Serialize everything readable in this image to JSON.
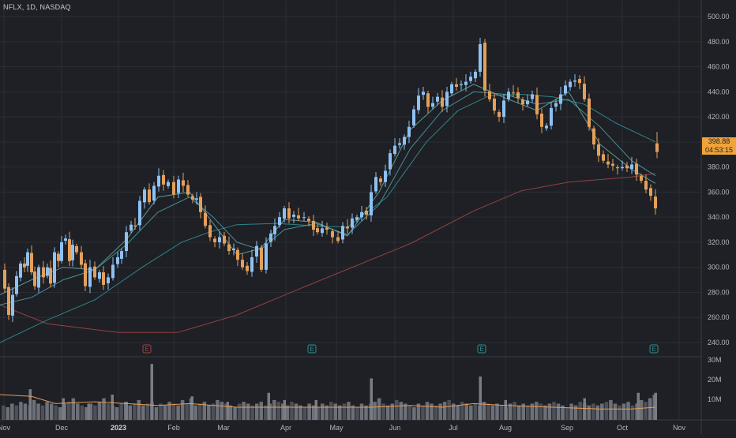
{
  "header": {
    "symbol": "NFLX, 1D, NASDAQ"
  },
  "price_tag": {
    "price": "398.88",
    "countdown": "04:53:15"
  },
  "colors": {
    "background": "#1e2025",
    "grid": "#2b2e35",
    "up": "#8ec1f2",
    "down": "#e3a05b",
    "ma_long": "#a04545",
    "ma_mid": "#2f8f93",
    "ma_short1": "#4b9aa6",
    "ma_short2": "#62a7a0",
    "volume": "#5b5e66",
    "volume_avg": "#e89b55",
    "price_tag": "#f0a33a"
  },
  "chart_data": [
    {
      "type": "candlestick",
      "title": "NFLX, 1D, NASDAQ",
      "ylim": [
        230,
        510
      ],
      "y_ticks": [
        "500.00",
        "480.00",
        "460.00",
        "440.00",
        "420.00",
        "400.00",
        "380.00",
        "360.00",
        "340.00",
        "320.00",
        "300.00",
        "280.00",
        "260.00",
        "240.00"
      ],
      "x_ticks": [
        "Nov",
        "Dec",
        "2023",
        "Feb",
        "Mar",
        "Apr",
        "May",
        "Jun",
        "Jul",
        "Aug",
        "Sep",
        "Oct",
        "Nov"
      ],
      "close_path": [
        [
          0,
          298
        ],
        [
          6,
          283
        ],
        [
          11,
          262
        ],
        [
          16,
          278
        ],
        [
          21,
          293
        ],
        [
          26,
          303
        ],
        [
          31,
          300
        ],
        [
          35,
          312
        ],
        [
          40,
          296
        ],
        [
          44,
          285
        ],
        [
          49,
          300
        ],
        [
          55,
          292
        ],
        [
          60,
          300
        ],
        [
          64,
          287
        ],
        [
          69,
          312
        ],
        [
          74,
          305
        ],
        [
          78,
          320
        ],
        [
          83,
          323
        ],
        [
          88,
          305
        ],
        [
          92,
          318
        ],
        [
          97,
          312
        ],
        [
          103,
          302
        ],
        [
          108,
          285
        ],
        [
          114,
          300
        ],
        [
          120,
          292
        ],
        [
          126,
          296
        ],
        [
          131,
          286
        ],
        [
          137,
          292
        ],
        [
          143,
          302
        ],
        [
          149,
          308
        ],
        [
          154,
          313
        ],
        [
          160,
          328
        ],
        [
          166,
          334
        ],
        [
          171,
          333
        ],
        [
          177,
          353
        ],
        [
          183,
          362
        ],
        [
          189,
          352
        ],
        [
          195,
          365
        ],
        [
          201,
          373
        ],
        [
          207,
          366
        ],
        [
          213,
          368
        ],
        [
          220,
          358
        ],
        [
          226,
          370
        ],
        [
          232,
          365
        ],
        [
          238,
          358
        ],
        [
          244,
          354
        ],
        [
          249,
          355
        ],
        [
          254,
          344
        ],
        [
          260,
          333
        ],
        [
          266,
          324
        ],
        [
          272,
          320
        ],
        [
          278,
          324
        ],
        [
          284,
          319
        ],
        [
          290,
          313
        ],
        [
          296,
          315
        ],
        [
          301,
          306
        ],
        [
          307,
          300
        ],
        [
          313,
          297
        ],
        [
          319,
          308
        ],
        [
          325,
          317
        ],
        [
          331,
          298
        ],
        [
          337,
          319
        ],
        [
          343,
          327
        ],
        [
          348,
          333
        ],
        [
          354,
          340
        ],
        [
          360,
          347
        ],
        [
          366,
          339
        ],
        [
          372,
          342
        ],
        [
          378,
          339
        ],
        [
          385,
          340
        ],
        [
          391,
          337
        ],
        [
          397,
          330
        ],
        [
          402,
          328
        ],
        [
          408,
          331
        ],
        [
          414,
          330
        ],
        [
          421,
          324
        ],
        [
          428,
          321
        ],
        [
          434,
          333
        ],
        [
          440,
          331
        ],
        [
          446,
          339
        ],
        [
          452,
          340
        ],
        [
          458,
          344
        ],
        [
          464,
          342
        ],
        [
          470,
          360
        ],
        [
          476,
          372
        ],
        [
          482,
          368
        ],
        [
          488,
          377
        ],
        [
          494,
          391
        ],
        [
          500,
          397
        ],
        [
          506,
          399
        ],
        [
          512,
          404
        ],
        [
          518,
          412
        ],
        [
          524,
          426
        ],
        [
          530,
          437
        ],
        [
          536,
          440
        ],
        [
          542,
          428
        ],
        [
          548,
          431
        ],
        [
          554,
          436
        ],
        [
          560,
          428
        ],
        [
          566,
          440
        ],
        [
          572,
          446
        ],
        [
          578,
          444
        ],
        [
          584,
          446
        ],
        [
          590,
          448
        ],
        [
          596,
          452
        ],
        [
          602,
          456
        ],
        [
          608,
          478
        ],
        [
          614,
          441
        ],
        [
          620,
          434
        ],
        [
          626,
          425
        ],
        [
          632,
          420
        ],
        [
          638,
          433
        ],
        [
          644,
          440
        ],
        [
          650,
          439
        ],
        [
          656,
          435
        ],
        [
          662,
          430
        ],
        [
          668,
          433
        ],
        [
          674,
          438
        ],
        [
          680,
          422
        ],
        [
          686,
          412
        ],
        [
          692,
          413
        ],
        [
          698,
          427
        ],
        [
          704,
          431
        ],
        [
          710,
          438
        ],
        [
          716,
          445
        ],
        [
          722,
          448
        ],
        [
          728,
          449
        ],
        [
          734,
          447
        ],
        [
          740,
          434
        ],
        [
          746,
          412
        ],
        [
          752,
          398
        ],
        [
          758,
          389
        ],
        [
          764,
          385
        ],
        [
          770,
          382
        ],
        [
          776,
          381
        ],
        [
          782,
          379
        ],
        [
          788,
          380
        ],
        [
          794,
          379
        ],
        [
          800,
          382
        ],
        [
          806,
          374
        ],
        [
          812,
          369
        ],
        [
          818,
          362
        ],
        [
          824,
          357
        ],
        [
          830,
          347
        ]
      ],
      "last_candle": {
        "open": 392,
        "high": 408,
        "low": 387,
        "close": 398.88
      },
      "moving_averages": [
        {
          "color": "ma_long",
          "points": [
            [
              0,
              270
            ],
            [
              60,
              255
            ],
            [
              150,
              248
            ],
            [
              225,
              248
            ],
            [
              300,
              262
            ],
            [
              380,
              283
            ],
            [
              450,
              301
            ],
            [
              520,
              319
            ],
            [
              600,
              345
            ],
            [
              660,
              361
            ],
            [
              720,
              368
            ],
            [
              760,
              370
            ],
            [
              800,
              372
            ],
            [
              830,
              375
            ]
          ]
        },
        {
          "color": "ma_mid",
          "points": [
            [
              0,
              240
            ],
            [
              60,
              258
            ],
            [
              120,
              274
            ],
            [
              180,
              300
            ],
            [
              230,
              320
            ],
            [
              265,
              328
            ],
            [
              300,
              334
            ],
            [
              350,
              335
            ],
            [
              400,
              333
            ],
            [
              440,
              332
            ],
            [
              490,
              356
            ],
            [
              540,
              400
            ],
            [
              580,
              425
            ],
            [
              620,
              437
            ],
            [
              660,
              438
            ],
            [
              700,
              436
            ],
            [
              740,
              430
            ],
            [
              780,
              415
            ],
            [
              830,
              400
            ]
          ]
        },
        {
          "color": "ma_short1",
          "points": [
            [
              0,
              270
            ],
            [
              40,
              276
            ],
            [
              80,
              290
            ],
            [
              120,
              298
            ],
            [
              160,
              318
            ],
            [
              200,
              344
            ],
            [
              240,
              356
            ],
            [
              270,
              340
            ],
            [
              300,
              320
            ],
            [
              330,
              314
            ],
            [
              360,
              330
            ],
            [
              400,
              335
            ],
            [
              440,
              326
            ],
            [
              480,
              350
            ],
            [
              520,
              395
            ],
            [
              560,
              425
            ],
            [
              600,
              440
            ],
            [
              640,
              438
            ],
            [
              680,
              430
            ],
            [
              720,
              434
            ],
            [
              760,
              412
            ],
            [
              800,
              385
            ],
            [
              830,
              373
            ]
          ]
        },
        {
          "color": "ma_short2",
          "points": [
            [
              0,
              278
            ],
            [
              40,
              290
            ],
            [
              80,
              300
            ],
            [
              120,
              298
            ],
            [
              160,
              322
            ],
            [
              200,
              356
            ],
            [
              240,
              360
            ],
            [
              270,
              335
            ],
            [
              300,
              310
            ],
            [
              330,
              315
            ],
            [
              360,
              338
            ],
            [
              400,
              336
            ],
            [
              440,
              325
            ],
            [
              480,
              360
            ],
            [
              520,
              410
            ],
            [
              560,
              433
            ],
            [
              600,
              446
            ],
            [
              640,
              435
            ],
            [
              680,
              425
            ],
            [
              720,
              440
            ],
            [
              760,
              398
            ],
            [
              800,
              378
            ],
            [
              830,
              367
            ]
          ]
        }
      ],
      "event_markers": [
        {
          "label": "E",
          "color": "ma_long"
        },
        {
          "label": "E",
          "color": "ma_mid"
        },
        {
          "label": "E",
          "color": "ma_mid"
        },
        {
          "label": "E",
          "color": "ma_mid"
        }
      ]
    },
    {
      "type": "bar",
      "series": [
        {
          "name": "",
          "values": [
            8,
            7,
            9,
            8,
            10,
            9,
            8,
            11,
            9,
            8,
            10,
            9,
            8,
            7,
            9,
            10,
            12,
            9,
            8,
            7,
            9,
            8,
            10,
            12,
            9,
            8,
            7,
            9,
            10,
            8,
            9,
            11,
            8,
            9,
            10,
            7,
            9,
            8,
            10,
            9,
            8,
            11,
            9,
            12,
            8,
            9,
            10,
            8,
            9,
            11,
            10,
            9,
            8,
            7,
            9,
            10,
            9,
            8,
            9,
            10,
            8,
            9,
            11,
            10,
            9,
            8,
            10,
            9,
            8,
            7,
            9,
            8,
            7,
            9,
            8,
            10,
            9,
            8,
            9,
            10,
            8,
            7,
            9,
            8,
            9,
            10,
            12,
            9,
            8,
            9,
            11,
            10,
            9,
            8,
            7,
            9,
            8,
            10,
            9,
            8,
            9,
            10,
            11,
            9,
            8,
            10,
            9,
            8,
            9,
            8,
            10,
            9,
            8,
            9,
            8,
            7,
            9,
            10,
            8,
            9,
            8,
            9,
            10,
            9,
            8,
            9,
            10,
            9,
            8,
            7,
            9,
            8,
            10,
            9,
            8,
            9,
            8,
            9,
            10,
            11,
            9,
            8,
            9,
            10,
            8,
            9,
            11,
            10,
            12,
            14
          ]
        }
      ],
      "spikes": [
        [
          38,
          17
        ],
        [
          80,
          12
        ],
        [
          112,
          9
        ],
        [
          142,
          14
        ],
        [
          160,
          10
        ],
        [
          192,
          31
        ],
        [
          243,
          13
        ],
        [
          288,
          10
        ],
        [
          340,
          15
        ],
        [
          360,
          11
        ],
        [
          400,
          11
        ],
        [
          470,
          23
        ],
        [
          608,
          24
        ],
        [
          640,
          11
        ],
        [
          740,
          12
        ],
        [
          808,
          15
        ],
        [
          830,
          15
        ]
      ],
      "ylim": [
        0,
        35
      ],
      "y_ticks": [
        "30M",
        "20M",
        "10M"
      ],
      "avg_path": [
        [
          0,
          14
        ],
        [
          40,
          13
        ],
        [
          70,
          9
        ],
        [
          120,
          10
        ],
        [
          160,
          9
        ],
        [
          200,
          8
        ],
        [
          240,
          9
        ],
        [
          300,
          7
        ],
        [
          360,
          7
        ],
        [
          420,
          7
        ],
        [
          470,
          7
        ],
        [
          520,
          8
        ],
        [
          560,
          7
        ],
        [
          600,
          9
        ],
        [
          640,
          8
        ],
        [
          700,
          7
        ],
        [
          760,
          6
        ],
        [
          800,
          6
        ],
        [
          830,
          7
        ]
      ]
    }
  ]
}
